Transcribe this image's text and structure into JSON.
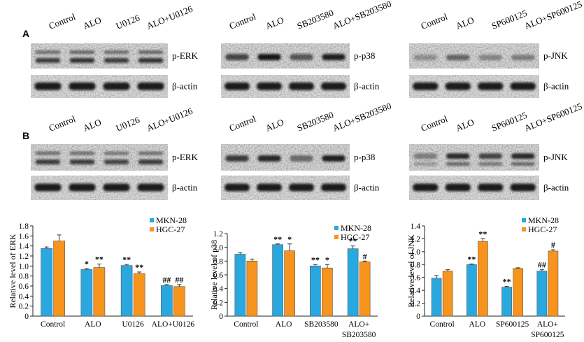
{
  "panel_letters": [
    "A",
    "B"
  ],
  "groups": [
    {
      "lanes": [
        "Control",
        "ALO",
        "U0126",
        "ALO+U0126"
      ],
      "target_label": "p-ERK",
      "actin_label": "β-actin"
    },
    {
      "lanes": [
        "Control",
        "ALO",
        "SB203580",
        "ALO+SB203580"
      ],
      "target_label": "p-p38",
      "actin_label": "β-actin"
    },
    {
      "lanes": [
        "Control",
        "ALO",
        "SP600125",
        "ALO+SP600125"
      ],
      "target_label": "p-JNK",
      "actin_label": "β-actin"
    }
  ],
  "colors": {
    "MKN-28": "#29a8e0",
    "HGC-27": "#f7941d"
  },
  "chart_data": [
    {
      "type": "bar",
      "categories": [
        "Control",
        "ALO",
        "U0126",
        "ALO+U0126"
      ],
      "ylabel": "Relative level of ERK",
      "ylim": [
        0,
        1.8
      ],
      "yticks": [
        "0",
        "0.2",
        "0.4",
        "0.6",
        "0.8",
        "1.0",
        "1.2",
        "1.4",
        "1.6",
        "1.8"
      ],
      "legend": [
        "MKN-28",
        "HGC-27"
      ],
      "legend_position": "top-right",
      "series": [
        {
          "name": "MKN-28",
          "values": [
            1.35,
            0.93,
            1.01,
            0.61
          ],
          "errors": [
            0.03,
            0.02,
            0.02,
            0.02
          ],
          "annotations": [
            "",
            "*",
            "**",
            "##"
          ]
        },
        {
          "name": "HGC-27",
          "values": [
            1.5,
            0.97,
            0.85,
            0.59
          ],
          "errors": [
            0.12,
            0.07,
            0.03,
            0.04
          ],
          "annotations": [
            "",
            "**",
            "**",
            "##"
          ]
        }
      ]
    },
    {
      "type": "bar",
      "categories": [
        "Control",
        "ALO",
        "SB203580",
        "ALO+\nSB203580"
      ],
      "ylabel": "Relative level of p38",
      "ylim": [
        0,
        1.2
      ],
      "yticks": [
        "0",
        "0.2",
        "0.4",
        "0.6",
        "0.8",
        "1.0",
        "1.2"
      ],
      "legend": [
        "MKN-28",
        "HGC-27"
      ],
      "legend_position": "top-right",
      "series": [
        {
          "name": "MKN-28",
          "values": [
            0.9,
            1.04,
            0.73,
            0.98
          ],
          "errors": [
            0.02,
            0.01,
            0.02,
            0.04
          ],
          "annotations": [
            "",
            "**",
            "**",
            "**"
          ]
        },
        {
          "name": "HGC-27",
          "values": [
            0.8,
            0.95,
            0.7,
            0.79
          ],
          "errors": [
            0.03,
            0.1,
            0.05,
            0.01
          ],
          "annotations": [
            "",
            "*",
            "*",
            "#"
          ]
        }
      ]
    },
    {
      "type": "bar",
      "categories": [
        "Control",
        "ALO",
        "SP600125",
        "ALO+\nSP600125"
      ],
      "ylabel": "Relative level of JNK",
      "ylim": [
        0,
        1.4
      ],
      "yticks": [
        "0",
        "0.2",
        "0.4",
        "0.6",
        "0.8",
        "1.0",
        "1.2",
        "1.4"
      ],
      "legend": [
        "MKN-28",
        "HGC-27"
      ],
      "legend_position": "top-right",
      "series": [
        {
          "name": "MKN-28",
          "values": [
            0.59,
            0.8,
            0.45,
            0.7
          ],
          "errors": [
            0.04,
            0.01,
            0.01,
            0.02
          ],
          "annotations": [
            "",
            "**",
            "**",
            "##"
          ]
        },
        {
          "name": "HGC-27",
          "values": [
            0.7,
            1.16,
            0.74,
            1.01
          ],
          "errors": [
            0.02,
            0.04,
            0.01,
            0.02
          ],
          "annotations": [
            "",
            "**",
            "",
            "#"
          ]
        }
      ]
    }
  ]
}
